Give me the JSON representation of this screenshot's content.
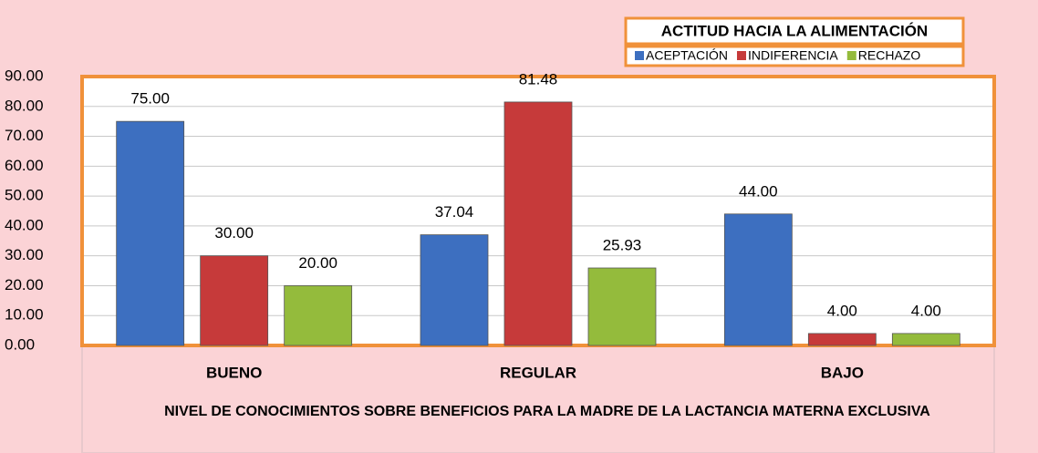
{
  "chart_data": {
    "type": "bar",
    "legend_title": "ACTITUD HACIA LA ALIMENTACIÓN",
    "x_label": "NIVEL DE CONOCIMIENTOS SOBRE BENEFICIOS PARA LA MADRE DE LA LACTANCIA MATERNA EXCLUSIVA",
    "categories": [
      "BUENO",
      "REGULAR",
      "BAJO"
    ],
    "series": [
      {
        "name": "ACEPTACIÓN",
        "color": "#3d6fc0",
        "values": [
          75,
          37.04,
          44
        ],
        "value_labels": [
          "75.00",
          "37.04",
          "44.00"
        ]
      },
      {
        "name": "INDIFERENCIA",
        "color": "#c63a3a",
        "values": [
          30,
          81.48,
          4
        ],
        "value_labels": [
          "30.00",
          "81.48",
          "4.00"
        ]
      },
      {
        "name": "RECHAZO",
        "color": "#94bb3c",
        "values": [
          20,
          25.93,
          4
        ],
        "value_labels": [
          "20.00",
          "25.93",
          "4.00"
        ]
      }
    ],
    "ylim": [
      0,
      90
    ],
    "yticks": [
      {
        "value": 0,
        "label": "0.00"
      },
      {
        "value": 10,
        "label": "10.00"
      },
      {
        "value": 20,
        "label": "20.00"
      },
      {
        "value": 30,
        "label": "30.00"
      },
      {
        "value": 40,
        "label": "40.00"
      },
      {
        "value": 50,
        "label": "50.00"
      },
      {
        "value": 60,
        "label": "60.00"
      },
      {
        "value": 70,
        "label": "70.00"
      },
      {
        "value": 80,
        "label": "80.00"
      },
      {
        "value": 90,
        "label": "90.00"
      }
    ],
    "grid": true
  }
}
